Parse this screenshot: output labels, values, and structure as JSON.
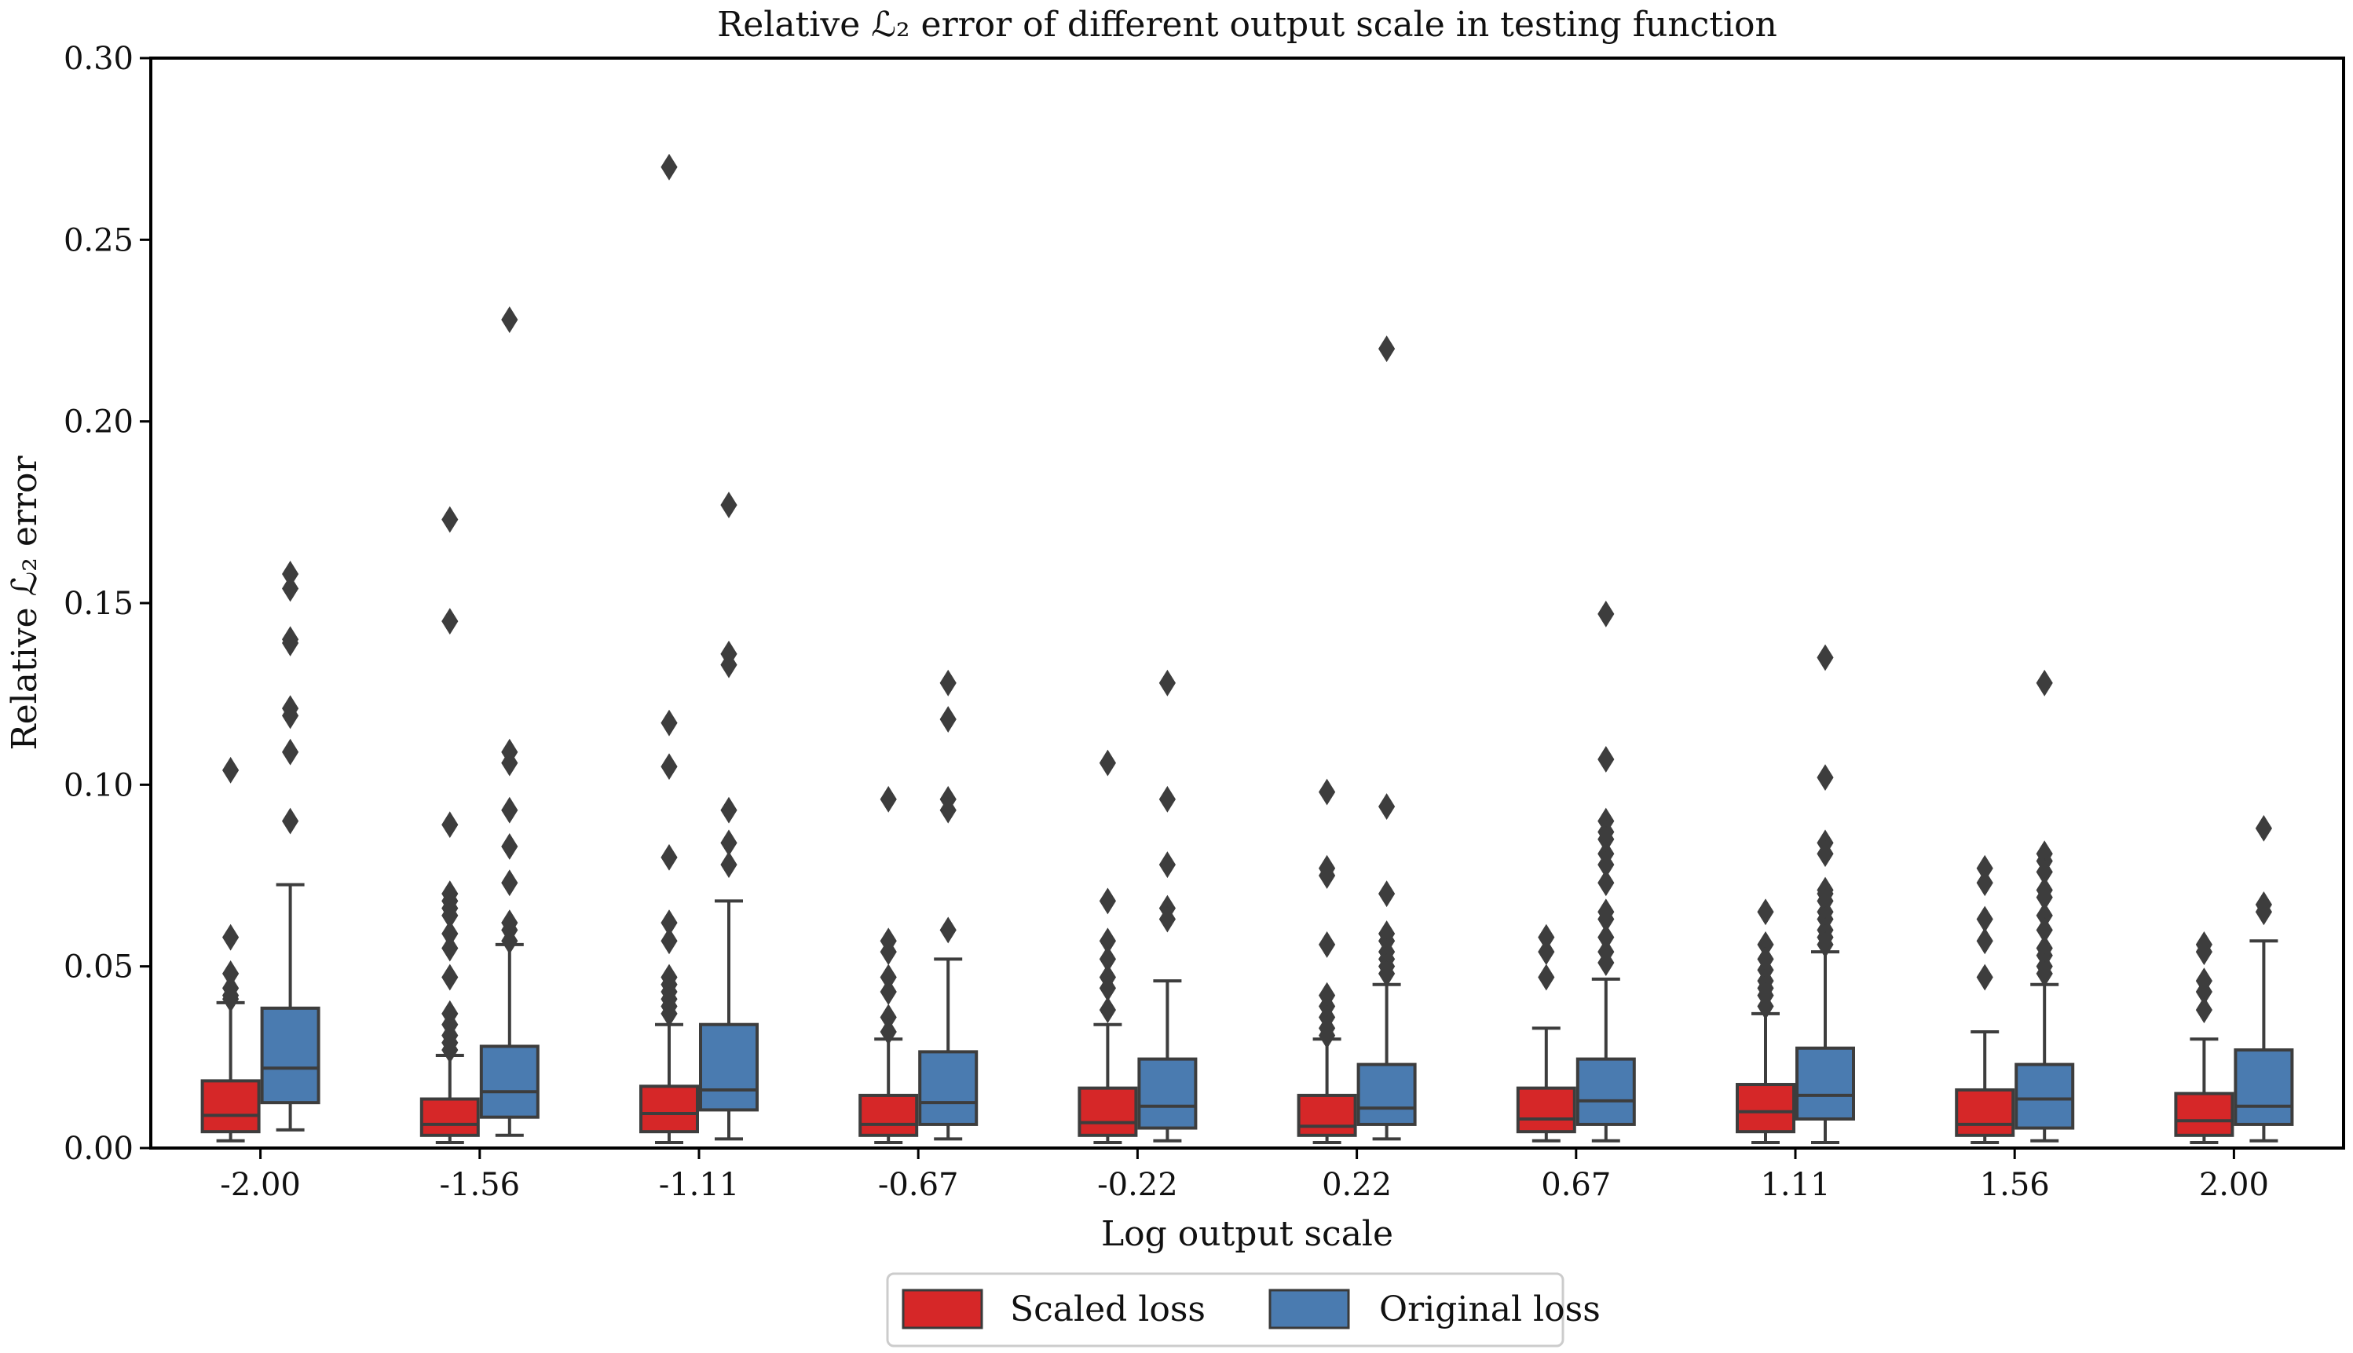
{
  "chart_data": {
    "type": "box",
    "title": "Relative ℒ₂ error of different output scale in testing function",
    "xlabel": "Log output scale",
    "ylabel": "Relative ℒ₂ error",
    "ylim": [
      0.0,
      0.3
    ],
    "yticks": [
      0.0,
      0.05,
      0.1,
      0.15,
      0.2,
      0.25,
      0.3
    ],
    "ytick_labels": [
      "0.00",
      "0.05",
      "0.10",
      "0.15",
      "0.20",
      "0.25",
      "0.30"
    ],
    "categories": [
      "-2.00",
      "-1.56",
      "-1.11",
      "-0.67",
      "-0.22",
      "0.22",
      "0.67",
      "1.11",
      "1.56",
      "2.00"
    ],
    "legend_position": "bottom-center",
    "series": [
      {
        "name": "Scaled loss",
        "color": "#d62728",
        "boxes": [
          {
            "whislo": 0.002,
            "q1": 0.0045,
            "med": 0.009,
            "q3": 0.0185,
            "whishi": 0.04,
            "fliers": [
              0.104,
              0.058,
              0.048,
              0.044,
              0.042,
              0.041
            ]
          },
          {
            "whislo": 0.0015,
            "q1": 0.0035,
            "med": 0.0065,
            "q3": 0.0135,
            "whishi": 0.0255,
            "fliers": [
              0.173,
              0.145,
              0.089,
              0.07,
              0.068,
              0.066,
              0.064,
              0.059,
              0.055,
              0.047,
              0.037,
              0.034,
              0.031,
              0.029,
              0.027
            ]
          },
          {
            "whislo": 0.0015,
            "q1": 0.0045,
            "med": 0.0095,
            "q3": 0.017,
            "whishi": 0.034,
            "fliers": [
              0.27,
              0.117,
              0.105,
              0.08,
              0.062,
              0.057,
              0.047,
              0.045,
              0.043,
              0.041,
              0.039,
              0.037
            ]
          },
          {
            "whislo": 0.0015,
            "q1": 0.0035,
            "med": 0.0065,
            "q3": 0.0145,
            "whishi": 0.03,
            "fliers": [
              0.096,
              0.057,
              0.054,
              0.047,
              0.043,
              0.036,
              0.032
            ]
          },
          {
            "whislo": 0.0015,
            "q1": 0.0035,
            "med": 0.007,
            "q3": 0.0165,
            "whishi": 0.034,
            "fliers": [
              0.106,
              0.068,
              0.057,
              0.052,
              0.047,
              0.044,
              0.038
            ]
          },
          {
            "whislo": 0.0015,
            "q1": 0.0035,
            "med": 0.006,
            "q3": 0.0145,
            "whishi": 0.03,
            "fliers": [
              0.098,
              0.077,
              0.075,
              0.056,
              0.042,
              0.039,
              0.036,
              0.033,
              0.031
            ]
          },
          {
            "whislo": 0.002,
            "q1": 0.0045,
            "med": 0.008,
            "q3": 0.0165,
            "whishi": 0.033,
            "fliers": [
              0.058,
              0.054,
              0.047
            ]
          },
          {
            "whislo": 0.0015,
            "q1": 0.0045,
            "med": 0.01,
            "q3": 0.0175,
            "whishi": 0.037,
            "fliers": [
              0.065,
              0.056,
              0.052,
              0.049,
              0.046,
              0.044,
              0.042,
              0.039
            ]
          },
          {
            "whislo": 0.0015,
            "q1": 0.0035,
            "med": 0.0065,
            "q3": 0.016,
            "whishi": 0.032,
            "fliers": [
              0.077,
              0.073,
              0.063,
              0.057,
              0.047
            ]
          },
          {
            "whislo": 0.0015,
            "q1": 0.0035,
            "med": 0.0075,
            "q3": 0.015,
            "whishi": 0.03,
            "fliers": [
              0.056,
              0.054,
              0.046,
              0.043,
              0.038
            ]
          }
        ]
      },
      {
        "name": "Original loss",
        "color": "#4a7bb0",
        "boxes": [
          {
            "whislo": 0.005,
            "q1": 0.0125,
            "med": 0.022,
            "q3": 0.0385,
            "whishi": 0.0725,
            "fliers": [
              0.158,
              0.154,
              0.14,
              0.139,
              0.121,
              0.119,
              0.109,
              0.09
            ]
          },
          {
            "whislo": 0.0035,
            "q1": 0.0085,
            "med": 0.0155,
            "q3": 0.028,
            "whishi": 0.056,
            "fliers": [
              0.228,
              0.109,
              0.106,
              0.093,
              0.083,
              0.073,
              0.062,
              0.06,
              0.057
            ]
          },
          {
            "whislo": 0.0025,
            "q1": 0.0105,
            "med": 0.016,
            "q3": 0.034,
            "whishi": 0.068,
            "fliers": [
              0.177,
              0.136,
              0.133,
              0.093,
              0.084,
              0.078
            ]
          },
          {
            "whislo": 0.0025,
            "q1": 0.0065,
            "med": 0.0125,
            "q3": 0.0265,
            "whishi": 0.052,
            "fliers": [
              0.128,
              0.118,
              0.096,
              0.093,
              0.06
            ]
          },
          {
            "whislo": 0.002,
            "q1": 0.0055,
            "med": 0.0115,
            "q3": 0.0245,
            "whishi": 0.046,
            "fliers": [
              0.128,
              0.096,
              0.078,
              0.066,
              0.063
            ]
          },
          {
            "whislo": 0.0025,
            "q1": 0.0065,
            "med": 0.011,
            "q3": 0.023,
            "whishi": 0.045,
            "fliers": [
              0.22,
              0.094,
              0.07,
              0.059,
              0.057,
              0.054,
              0.052,
              0.05,
              0.048
            ]
          },
          {
            "whislo": 0.002,
            "q1": 0.0065,
            "med": 0.013,
            "q3": 0.0245,
            "whishi": 0.0465,
            "fliers": [
              0.147,
              0.107,
              0.09,
              0.087,
              0.085,
              0.081,
              0.078,
              0.073,
              0.065,
              0.063,
              0.058,
              0.054,
              0.051
            ]
          },
          {
            "whislo": 0.0015,
            "q1": 0.008,
            "med": 0.0145,
            "q3": 0.0275,
            "whishi": 0.054,
            "fliers": [
              0.135,
              0.102,
              0.084,
              0.081,
              0.071,
              0.07,
              0.068,
              0.065,
              0.063,
              0.06,
              0.058,
              0.056
            ]
          },
          {
            "whislo": 0.002,
            "q1": 0.0055,
            "med": 0.0135,
            "q3": 0.023,
            "whishi": 0.045,
            "fliers": [
              0.128,
              0.081,
              0.079,
              0.076,
              0.071,
              0.069,
              0.064,
              0.06,
              0.055,
              0.053,
              0.05,
              0.048
            ]
          },
          {
            "whislo": 0.002,
            "q1": 0.0065,
            "med": 0.0115,
            "q3": 0.027,
            "whishi": 0.057,
            "fliers": [
              0.088,
              0.067,
              0.065
            ]
          }
        ]
      }
    ]
  }
}
